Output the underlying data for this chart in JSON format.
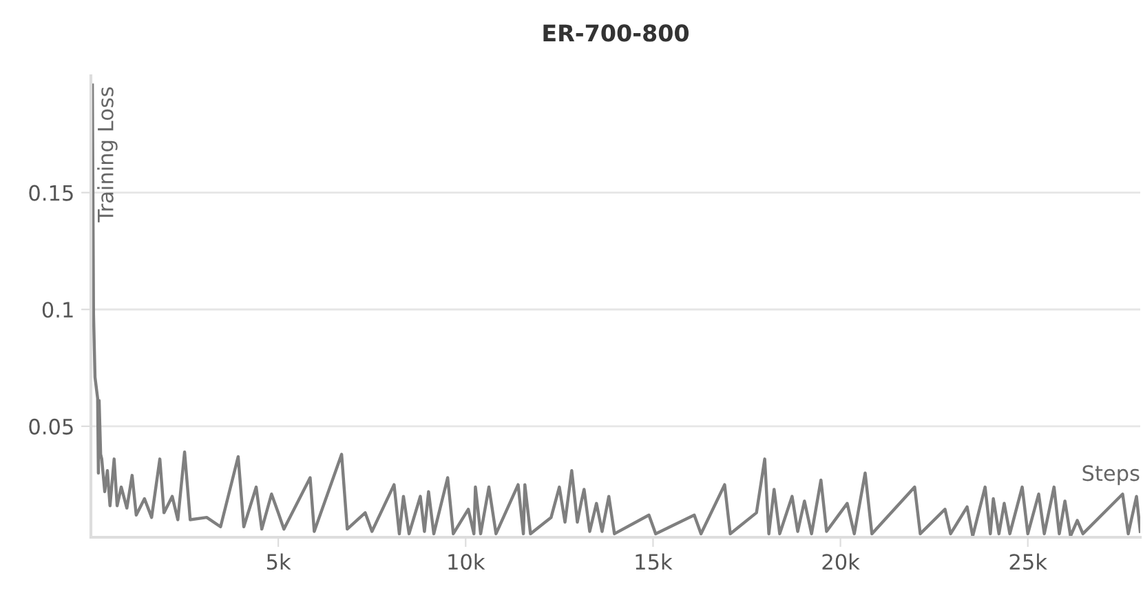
{
  "chart_data": {
    "type": "line",
    "title": "ER-700-800",
    "xlabel": "Steps",
    "ylabel": "Training Loss",
    "x": [
      40,
      70,
      110,
      180,
      200,
      220,
      260,
      290,
      370,
      440,
      510,
      620,
      700,
      810,
      960,
      1100,
      1210,
      1430,
      1620,
      1840,
      1950,
      2170,
      2320,
      2500,
      2650,
      3090,
      3460,
      3930,
      4080,
      4410,
      4560,
      4820,
      5000,
      5150,
      5850,
      5960,
      6690,
      6840,
      7320,
      7500,
      8090,
      8230,
      8340,
      8490,
      8790,
      8900,
      9010,
      9150,
      9520,
      9670,
      10070,
      10220,
      10260,
      10400,
      10620,
      10810,
      11400,
      11540,
      11580,
      11730,
      12280,
      12500,
      12650,
      12830,
      12980,
      13090,
      13160,
      13310,
      13490,
      13640,
      13820,
      13970,
      14890,
      15070,
      16100,
      16280,
      16910,
      17060,
      17760,
      17980,
      18090,
      18230,
      18380,
      18710,
      18860,
      19040,
      19230,
      19480,
      19630,
      20180,
      20370,
      20660,
      20840,
      21980,
      22130,
      22790,
      22940,
      23380,
      23530,
      23860,
      24000,
      24080,
      24230,
      24370,
      24520,
      24850,
      25000,
      25290,
      25440,
      25700,
      25840,
      25990,
      26140,
      26320,
      26470,
      27530,
      27680,
      27900,
      28000
    ],
    "series": [
      {
        "color": "#7f7f7f",
        "values": [
          0.196,
          0.098,
          0.071,
          0.062,
          0.03,
          0.061,
          0.038,
          0.036,
          0.022,
          0.031,
          0.016,
          0.036,
          0.016,
          0.024,
          0.015,
          0.029,
          0.012,
          0.019,
          0.011,
          0.036,
          0.013,
          0.02,
          0.01,
          0.039,
          0.01,
          0.011,
          0.007,
          0.037,
          0.007,
          0.024,
          0.006,
          0.021,
          0.013,
          0.006,
          0.028,
          0.005,
          0.038,
          0.006,
          0.013,
          0.005,
          0.025,
          0.004,
          0.02,
          0.004,
          0.02,
          0.005,
          0.022,
          0.004,
          0.028,
          0.004,
          0.0145,
          0.004,
          0.024,
          0.004,
          0.024,
          0.004,
          0.025,
          0.004,
          0.025,
          0.004,
          0.011,
          0.024,
          0.009,
          0.031,
          0.009,
          0.018,
          0.023,
          0.005,
          0.017,
          0.005,
          0.02,
          0.004,
          0.012,
          0.004,
          0.012,
          0.004,
          0.025,
          0.004,
          0.013,
          0.036,
          0.004,
          0.023,
          0.004,
          0.02,
          0.005,
          0.018,
          0.004,
          0.027,
          0.005,
          0.017,
          0.004,
          0.03,
          0.004,
          0.024,
          0.004,
          0.0145,
          0.004,
          0.0155,
          0.003,
          0.024,
          0.004,
          0.019,
          0.004,
          0.017,
          0.004,
          0.024,
          0.004,
          0.021,
          0.004,
          0.024,
          0.004,
          0.018,
          0.003,
          0.0097,
          0.004,
          0.021,
          0.004,
          0.02,
          0.005
        ]
      }
    ],
    "xlim": [
      0,
      28000
    ],
    "ylim": [
      0.0025,
      0.2
    ],
    "xticks": [
      {
        "value": 5000,
        "label": "5k"
      },
      {
        "value": 10000,
        "label": "10k"
      },
      {
        "value": 15000,
        "label": "15k"
      },
      {
        "value": 20000,
        "label": "20k"
      },
      {
        "value": 25000,
        "label": "25k"
      }
    ],
    "yticks": [
      0.05,
      0.1,
      0.15
    ],
    "grid": "y",
    "line_style": "solid"
  }
}
